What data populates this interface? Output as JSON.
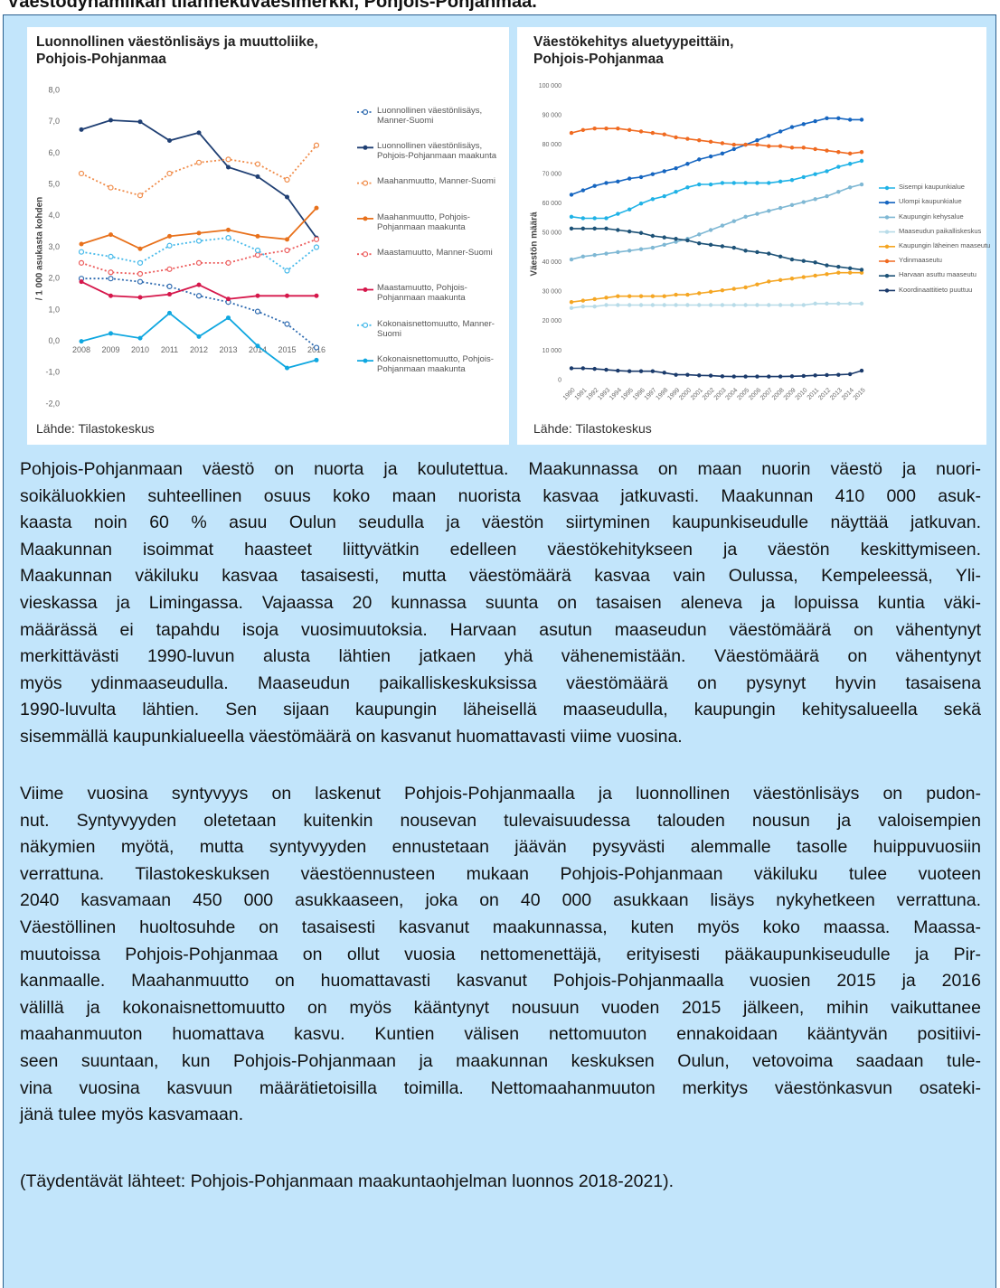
{
  "header": {
    "title": "Väestödynamiikan tilannekuvaesimerkki, Pohjois-Pohjanmaa."
  },
  "chart_data": [
    {
      "type": "line",
      "title": "Luonnollinen väestönlisäys ja muuttoliike, Pohjois-Pohjanmaa",
      "ylabel": "/ 1 000 asukasta kohden",
      "source": "Lähde: Tilastokeskus",
      "legend": "right",
      "grid": false,
      "categories": [
        "2008",
        "2009",
        "2010",
        "2011",
        "2012",
        "2013",
        "2014",
        "2015",
        "2016"
      ],
      "ylim": [
        -2,
        8
      ],
      "yticks": [
        {
          "value": -2,
          "label": "-2,0"
        },
        {
          "value": -1,
          "label": "-1,0"
        },
        {
          "value": 0,
          "label": "0,0"
        },
        {
          "value": 1,
          "label": "1,0"
        },
        {
          "value": 2,
          "label": "2,0"
        },
        {
          "value": 3,
          "label": "3,0"
        },
        {
          "value": 4,
          "label": "4,0"
        },
        {
          "value": 5,
          "label": "5,0"
        },
        {
          "value": 6,
          "label": "6,0"
        },
        {
          "value": 7,
          "label": "7,0"
        },
        {
          "value": 8,
          "label": "8,0"
        }
      ],
      "series": [
        {
          "name": "Luonnollinen väestönlisäys, Manner-Suomi",
          "color": "#2f6bb0",
          "style": "dotted",
          "values": [
            2.0,
            2.0,
            1.9,
            1.75,
            1.45,
            1.25,
            0.95,
            0.55,
            -0.2
          ]
        },
        {
          "name": "Luonnollinen väestönlisäys, Pohjois-Pohjanmaan maakunta",
          "color": "#1f3f73",
          "style": "solid",
          "values": [
            6.75,
            7.05,
            7.0,
            6.4,
            6.65,
            5.55,
            5.25,
            4.6,
            3.3
          ]
        },
        {
          "name": "Maahanmuutto, Manner-Suomi",
          "color": "#f08c4a",
          "style": "dotted",
          "values": [
            5.35,
            4.9,
            4.65,
            5.35,
            5.7,
            5.8,
            5.65,
            5.15,
            6.25
          ]
        },
        {
          "name": "Maahanmuutto, Pohjois-Pohjanmaan maakunta",
          "color": "#e8711c",
          "style": "solid",
          "values": [
            3.1,
            3.4,
            2.95,
            3.35,
            3.45,
            3.55,
            3.35,
            3.25,
            4.25
          ]
        },
        {
          "name": "Maastamuutto, Manner-Suomi",
          "color": "#ec5a5a",
          "style": "dotted",
          "values": [
            2.5,
            2.2,
            2.15,
            2.3,
            2.5,
            2.5,
            2.75,
            2.9,
            3.25
          ]
        },
        {
          "name": "Maastamuutto, Pohjois-Pohjanmaan maakunta",
          "color": "#d6174b",
          "style": "solid",
          "values": [
            1.9,
            1.45,
            1.4,
            1.5,
            1.8,
            1.35,
            1.45,
            1.45,
            1.45
          ]
        },
        {
          "name": "Kokonaisnettomuutto, Manner-Suomi",
          "color": "#45b9ea",
          "style": "dotted",
          "values": [
            2.85,
            2.7,
            2.5,
            3.05,
            3.2,
            3.3,
            2.9,
            2.25,
            3.0
          ]
        },
        {
          "name": "Kokonaisnettomuutto, Pohjois-Pohjanmaan maakunta",
          "color": "#0fa7e0",
          "style": "solid",
          "values": [
            0.0,
            0.25,
            0.1,
            0.9,
            0.15,
            0.75,
            -0.15,
            -0.85,
            -0.6
          ]
        }
      ]
    },
    {
      "type": "line",
      "title": "Väestökehitys aluetyypeittäin, Pohjois-Pohjanmaa",
      "ylabel": "Väestön määrä",
      "source": "Lähde: Tilastokeskus",
      "legend": "right",
      "grid": false,
      "categories": [
        "1990",
        "1991",
        "1992",
        "1993",
        "1994",
        "1995",
        "1996",
        "1997",
        "1998",
        "1999",
        "2000",
        "2001",
        "2002",
        "2003",
        "2004",
        "2005",
        "2006",
        "2007",
        "2008",
        "2009",
        "2010",
        "2011",
        "2012",
        "2013",
        "2014",
        "2015"
      ],
      "ylim": [
        0,
        100000
      ],
      "yticks": [
        0,
        {
          "value": 10000,
          "label": "10 000"
        },
        {
          "value": 20000,
          "label": "20 000"
        },
        {
          "value": 30000,
          "label": "30 000"
        },
        {
          "value": 40000,
          "label": "40 000"
        },
        {
          "value": 50000,
          "label": "50 000"
        },
        {
          "value": 60000,
          "label": "60 000"
        },
        {
          "value": 70000,
          "label": "70 000"
        },
        {
          "value": 80000,
          "label": "80 000"
        },
        {
          "value": 90000,
          "label": "90 000"
        },
        {
          "value": 100000,
          "label": "100 000"
        }
      ],
      "series": [
        {
          "name": "Sisempi kaupunkialue",
          "color": "#1fb2e6",
          "style": "solid",
          "values": [
            55500,
            55000,
            55000,
            55000,
            56500,
            58000,
            60000,
            61500,
            62500,
            64000,
            65500,
            66500,
            66500,
            67000,
            67000,
            67000,
            67000,
            67000,
            67500,
            68000,
            69000,
            70000,
            71000,
            72500,
            73500,
            74500
          ]
        },
        {
          "name": "Ulompi kaupunkialue",
          "color": "#1565c0",
          "style": "solid",
          "values": [
            63000,
            64500,
            66000,
            67000,
            67500,
            68500,
            69000,
            70000,
            71000,
            72000,
            73500,
            75000,
            76000,
            77000,
            78500,
            80000,
            81500,
            83000,
            84500,
            86000,
            87000,
            88000,
            89000,
            89000,
            88500,
            88500
          ]
        },
        {
          "name": "Kaupungin kehysalue",
          "color": "#7fb8d4",
          "style": "solid",
          "values": [
            41000,
            42000,
            42500,
            43000,
            43500,
            44000,
            44500,
            45000,
            46000,
            47000,
            48000,
            49500,
            51000,
            52500,
            54000,
            55500,
            56500,
            57500,
            58500,
            59500,
            60500,
            61500,
            62500,
            64000,
            65500,
            66500
          ]
        },
        {
          "name": "Maaseudun paikalliskeskus",
          "color": "#b7dbe8",
          "style": "solid",
          "values": [
            24500,
            25000,
            25000,
            25500,
            25500,
            25500,
            25500,
            25500,
            25500,
            25500,
            25500,
            25500,
            25500,
            25500,
            25500,
            25500,
            25500,
            25500,
            25500,
            25500,
            25500,
            26000,
            26000,
            26000,
            26000,
            26000
          ]
        },
        {
          "name": "Kaupungin läheinen maaseutu",
          "color": "#f5a623",
          "style": "solid",
          "values": [
            26500,
            27000,
            27500,
            28000,
            28500,
            28500,
            28500,
            28500,
            28500,
            29000,
            29000,
            29500,
            30000,
            30500,
            31000,
            31500,
            32500,
            33500,
            34000,
            34500,
            35000,
            35500,
            36000,
            36500,
            36500,
            36500
          ]
        },
        {
          "name": "Ydinmaaseutu",
          "color": "#f06a20",
          "style": "solid",
          "values": [
            84000,
            85000,
            85500,
            85500,
            85500,
            85000,
            84500,
            84000,
            83500,
            82500,
            82000,
            81500,
            81000,
            80500,
            80000,
            80000,
            80000,
            79500,
            79500,
            79000,
            79000,
            78500,
            78000,
            77500,
            77000,
            77500
          ]
        },
        {
          "name": "Harvaan asuttu maaseutu",
          "color": "#1d5277",
          "style": "solid",
          "values": [
            51500,
            51500,
            51500,
            51500,
            51000,
            50500,
            50000,
            49000,
            48500,
            48000,
            47500,
            46500,
            46000,
            45500,
            45000,
            44000,
            43500,
            43000,
            42000,
            41000,
            40500,
            40000,
            39000,
            38500,
            38000,
            37500
          ]
        },
        {
          "name": "Koordinaattitieto puuttuu",
          "color": "#1a3a6b",
          "style": "solid",
          "values": [
            4000,
            4000,
            3800,
            3500,
            3200,
            3000,
            3000,
            3000,
            2500,
            1800,
            1800,
            1600,
            1500,
            1300,
            1200,
            1200,
            1200,
            1200,
            1200,
            1300,
            1400,
            1600,
            1700,
            1800,
            2000,
            3200
          ]
        }
      ]
    }
  ],
  "body": {
    "paragraphs": [
      [
        "Pohjois-Pohjanmaan väestö on nuorta ja koulutettua. Maakunnassa on maan nuorin väestö ja nuori-",
        "soikäluokkien suhteellinen osuus koko maan nuorista kasvaa jatkuvasti. Maakunnan 410 000 asuk-",
        "kaasta noin 60 % asuu Oulun seudulla ja väestön siirtyminen kaupunkiseudulle näyttää jatkuvan.",
        "Maakunnan isoimmat haasteet liittyvätkin edelleen väestökehitykseen ja väestön keskittymiseen.",
        "Maakunnan väkiluku kasvaa tasaisesti, mutta väestömäärä kasvaa vain Oulussa, Kempeleessä, Yli-",
        "vieskassa ja Limingassa. Vajaassa 20 kunnassa suunta on tasaisen aleneva ja lopuissa kuntia väki-",
        "määrässä ei tapahdu isoja vuosimuutoksia. Harvaan asutun maaseudun väestömäärä on vähentynyt",
        "merkittävästi 1990-luvun alusta lähtien jatkaen yhä vähenemistään. Väestömäärä on vähentynyt",
        "myös ydinmaaseudulla. Maaseudun paikalliskeskuksissa väestömäärä on pysynyt hyvin tasaisena",
        "1990-luvulta lähtien. Sen sijaan kaupungin läheisellä maaseudulla, kaupungin kehitysalueella sekä",
        "sisemmällä kaupunkialueella väestömäärä on kasvanut huomattavasti viime vuosina."
      ],
      [
        "Viime vuosina syntyvyys on laskenut Pohjois-Pohjanmaalla ja luonnollinen väestönlisäys on pudon-",
        "nut. Syntyvyyden oletetaan kuitenkin nousevan tulevaisuudessa talouden nousun ja valoisempien",
        "näkymien myötä, mutta syntyvyyden ennustetaan jäävän pysyvästi alemmalle tasolle huippuvuosiin",
        "verrattuna. Tilastokeskuksen väestöennusteen mukaan Pohjois-Pohjanmaan väkiluku tulee vuoteen",
        "2040 kasvamaan 450 000 asukkaaseen, joka on 40 000 asukkaan lisäys nykyhetkeen verrattuna.",
        "Väestöllinen huoltosuhde on tasaisesti kasvanut maakunnassa, kuten myös koko maassa. Maassa-",
        "muutoissa Pohjois-Pohjanmaa on ollut vuosia nettomenettäjä, erityisesti pääkaupunkiseudulle ja Pir-",
        "kanmaalle. Maahanmuutto on huomattavasti kasvanut Pohjois-Pohjanmaalla vuosien 2015 ja 2016",
        "välillä ja kokonaisnettomuutto on myös kääntynyt nousuun vuoden 2015 jälkeen, mihin vaikuttanee",
        "maahanmuuton huomattava kasvu. Kuntien välisen nettomuuton ennakoidaan kääntyvän positiivi-",
        "seen suuntaan, kun Pohjois-Pohjanmaan ja maakunnan keskuksen Oulun, vetovoima saadaan tule-",
        "vina vuosina kasvuun määrätietoisilla toimilla. Nettomaahanmuuton merkitys väestönkasvun osateki-",
        "jänä tulee myös kasvamaan."
      ],
      [
        "(Täydentävät lähteet: Pohjois-Pohjanmaan maakuntaohjelman luonnos 2018-2021)."
      ]
    ]
  }
}
